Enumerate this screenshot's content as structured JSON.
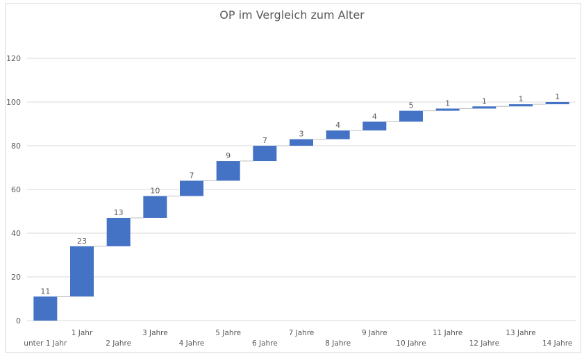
{
  "chart_data": {
    "type": "bar",
    "subtype": "waterfall",
    "title": "OP im Vergleich zum Alter",
    "xlabel": "",
    "ylabel": "",
    "ylim": [
      0,
      120
    ],
    "yticks": [
      0,
      20,
      40,
      60,
      80,
      100,
      120
    ],
    "grid": true,
    "legend": "none",
    "categories": [
      "unter 1 Jahr",
      "1 Jahr",
      "2 Jahre",
      "3 Jahre",
      "4 Jahre",
      "5 Jahre",
      "6 Jahre",
      "7 Jahre",
      "8 Jahre",
      "9 Jahre",
      "10 Jahre",
      "11 Jahre",
      "12 Jahre",
      "13 Jahre",
      "14 Jahre"
    ],
    "values": [
      11,
      23,
      13,
      10,
      7,
      9,
      7,
      3,
      4,
      4,
      5,
      1,
      1,
      1,
      1
    ],
    "colors": {
      "bar": "#4472c4",
      "grid": "#d9d9d9",
      "text": "#595959",
      "connector": "#bfbfbf"
    }
  }
}
